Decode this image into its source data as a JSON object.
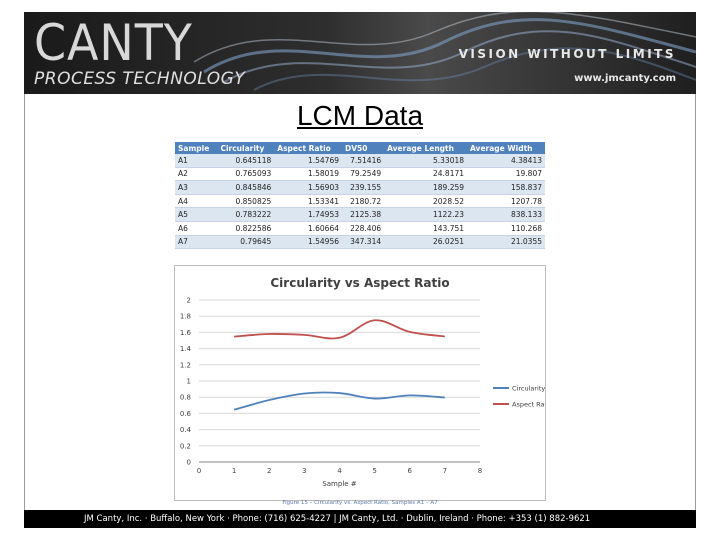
{
  "header": {
    "logo_main": "CANTY",
    "logo_sub": "PROCESS TECHNOLOGY",
    "tagline": "VISION WITHOUT LIMITS",
    "url": "www.jmcanty.com"
  },
  "page_title": "LCM Data",
  "table": {
    "columns": [
      "Sample",
      "Circularity",
      "Aspect Ratio",
      "DV50",
      "Average Length",
      "Average Width"
    ],
    "rows": [
      [
        "A1",
        "0.645118",
        "1.54769",
        "7.51416",
        "5.33018",
        "4.38413"
      ],
      [
        "A2",
        "0.765093",
        "1.58019",
        "79.2549",
        "24.8171",
        "19.807"
      ],
      [
        "A3",
        "0.845846",
        "1.56903",
        "239.155",
        "189.259",
        "158.837"
      ],
      [
        "A4",
        "0.850825",
        "1.53341",
        "2180.72",
        "2028.52",
        "1207.78"
      ],
      [
        "A5",
        "0.783222",
        "1.74953",
        "2125.38",
        "1122.23",
        "838.133"
      ],
      [
        "A6",
        "0.822586",
        "1.60664",
        "228.406",
        "143.751",
        "110.268"
      ],
      [
        "A7",
        "0.79645",
        "1.54956",
        "347.314",
        "26.0251",
        "21.0355"
      ]
    ]
  },
  "chart_data": {
    "type": "line",
    "title": "Circularity vs Aspect Ratio",
    "xlabel": "Sample #",
    "ylabel": "",
    "x": [
      1,
      2,
      3,
      4,
      5,
      6,
      7
    ],
    "xlim": [
      0,
      8
    ],
    "ylim": [
      0,
      2
    ],
    "x_ticks": [
      "0",
      "1",
      "2",
      "3",
      "4",
      "5",
      "6",
      "7",
      "8"
    ],
    "y_ticks": [
      "0",
      "0.2",
      "0.4",
      "0.6",
      "0.8",
      "1",
      "1.2",
      "1.4",
      "1.6",
      "1.8",
      "2"
    ],
    "grid": true,
    "legend_position": "right",
    "series": [
      {
        "name": "Circularity",
        "color": "#4f81bd",
        "values": [
          0.645118,
          0.765093,
          0.845846,
          0.850825,
          0.783222,
          0.822586,
          0.79645
        ]
      },
      {
        "name": "Aspect Ratio",
        "color": "#c0504d",
        "values": [
          1.54769,
          1.58019,
          1.56903,
          1.53341,
          1.74953,
          1.60664,
          1.54956
        ]
      }
    ]
  },
  "caption": "Figure 15 – Circularity vs. Aspect Ratio, Samples A1 – A7",
  "footer": "JM Canty, Inc. · Buffalo, New York  ·  Phone: (716) 625-4227  | JM Canty, Ltd. · Dublin, Ireland · Phone: +353 (1) 882-9621"
}
